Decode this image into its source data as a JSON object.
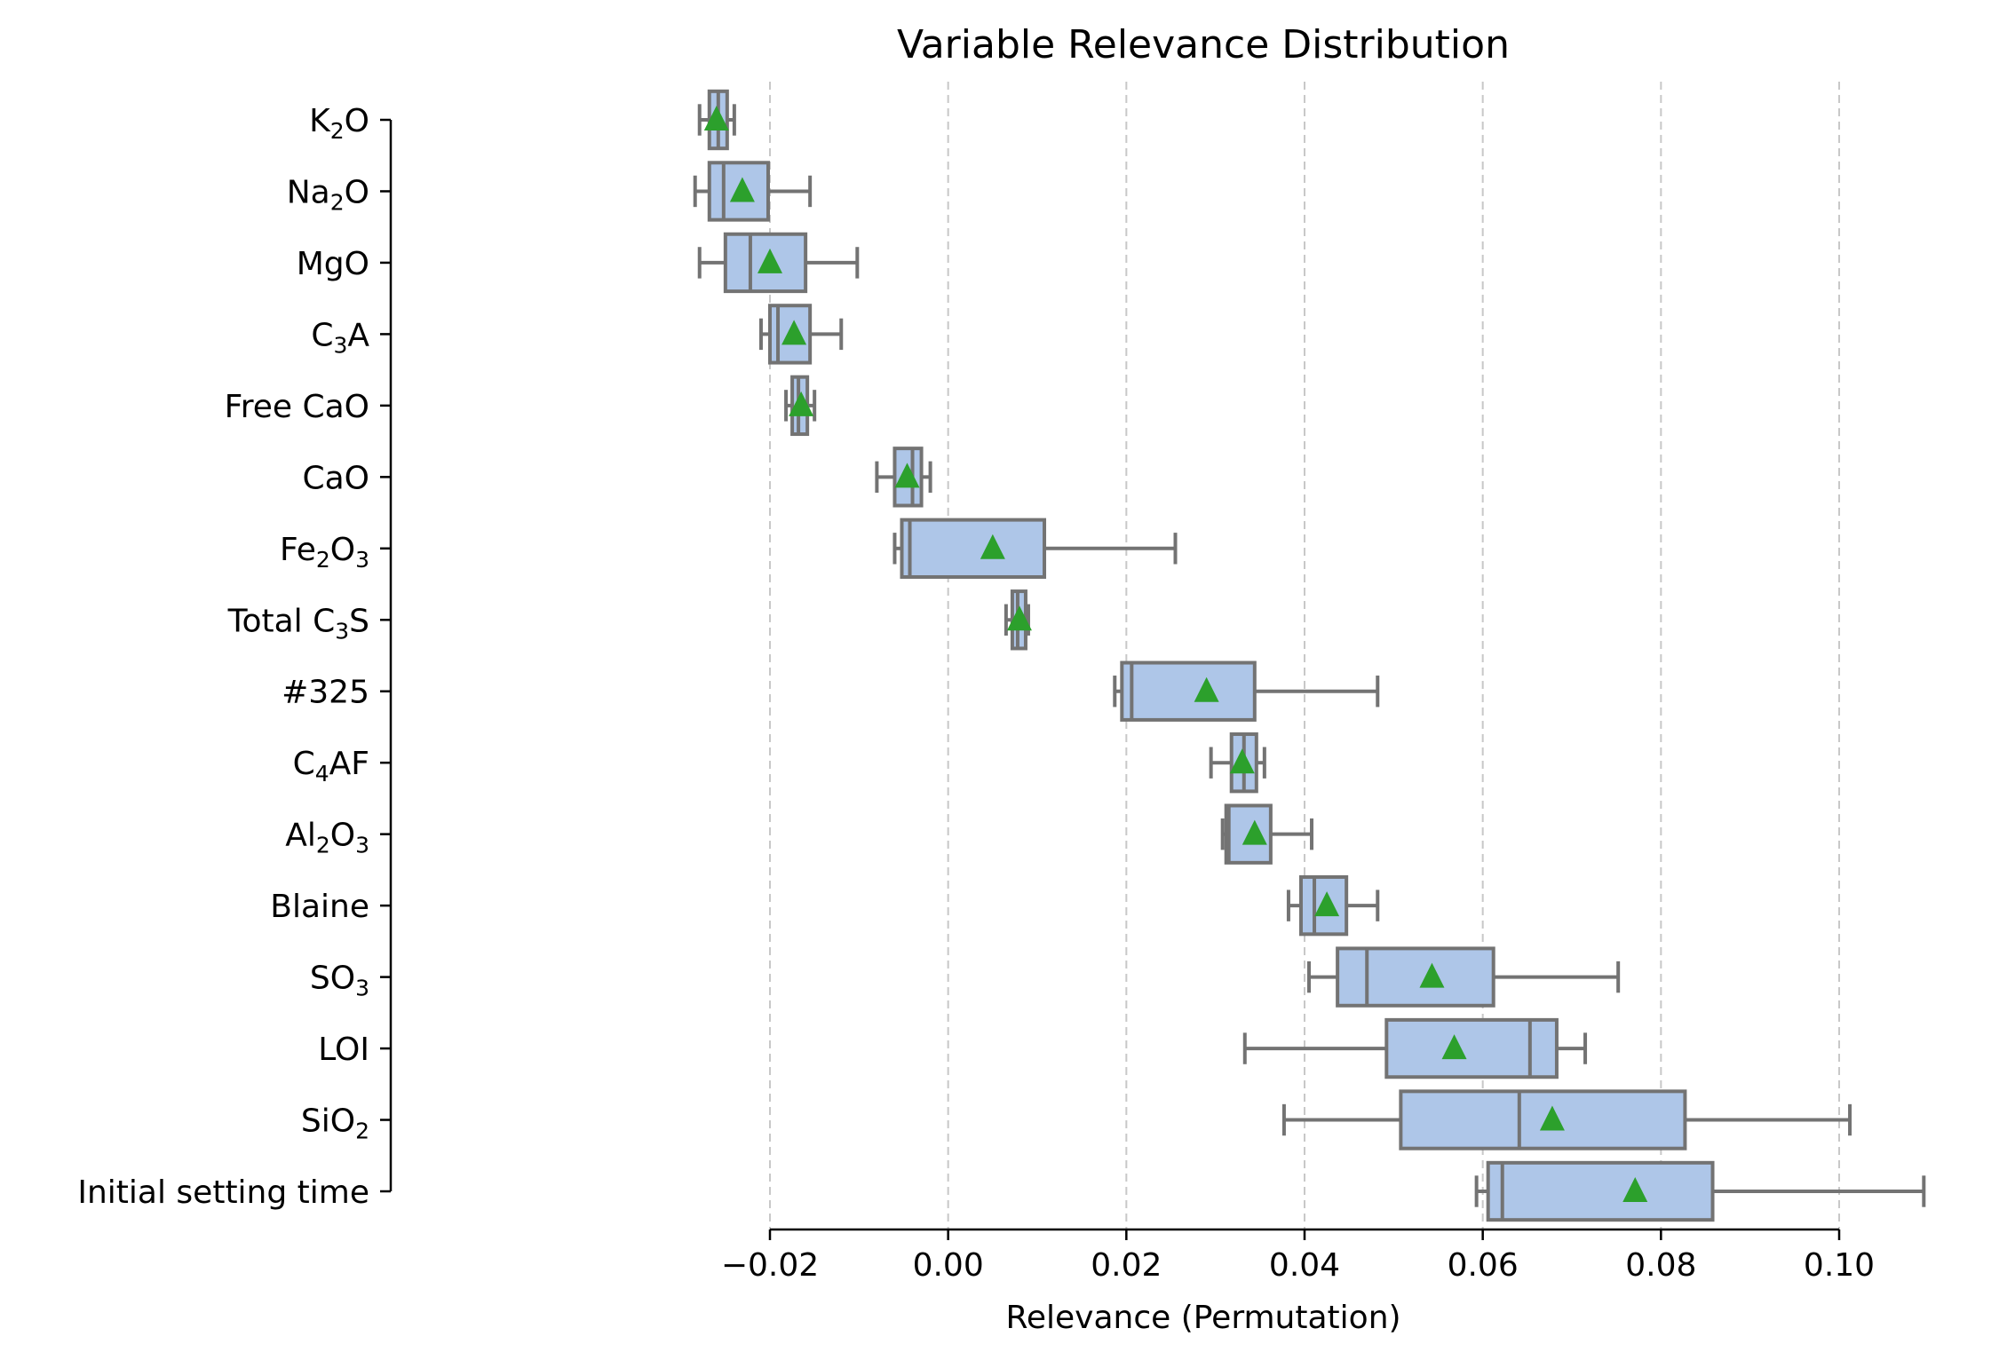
{
  "chart_data": {
    "type": "box",
    "title": "Variable Relevance Distribution",
    "xlabel": "Relevance (Permutation)",
    "ylabel": "",
    "xlim": [
      -0.0275,
      0.1118
    ],
    "xticks": [
      -0.02,
      0.0,
      0.02,
      0.04,
      0.06,
      0.08,
      0.1
    ],
    "xtick_labels": [
      "−0.02",
      "0.00",
      "0.02",
      "0.04",
      "0.06",
      "0.08",
      "0.10"
    ],
    "grid": "x-dashed",
    "colors": {
      "box_fill": "#aec6e8",
      "box_edge": "#737373",
      "mean_marker": "#2ca02c",
      "grid": "#c8c8c8"
    },
    "categories": [
      {
        "label": "K",
        "sub": "2",
        "tail": "O"
      },
      {
        "label": "Na",
        "sub": "2",
        "tail": "O"
      },
      {
        "label": "MgO"
      },
      {
        "label": "C",
        "sub": "3",
        "tail": "A"
      },
      {
        "label": "Free CaO"
      },
      {
        "label": "CaO"
      },
      {
        "label": "Fe",
        "sub": "2",
        "tail": "O",
        "sub2": "3"
      },
      {
        "label": "Total C",
        "sub": "3",
        "tail": "S"
      },
      {
        "label": "#325"
      },
      {
        "label": "C",
        "sub": "4",
        "tail": "AF"
      },
      {
        "label": "Al",
        "sub": "2",
        "tail": "O",
        "sub2": "3"
      },
      {
        "label": "Blaine"
      },
      {
        "label": "SO",
        "sub": "3"
      },
      {
        "label": "LOI"
      },
      {
        "label": "SiO",
        "sub": "2"
      },
      {
        "label": "Initial setting time"
      }
    ],
    "boxes": [
      {
        "whislo": -0.0279,
        "q1": -0.0268,
        "med": -0.0258,
        "q3": -0.0248,
        "whishi": -0.024,
        "mean": -0.026
      },
      {
        "whislo": -0.0284,
        "q1": -0.0268,
        "med": -0.0252,
        "q3": -0.0202,
        "whishi": -0.0155,
        "mean": -0.0231
      },
      {
        "whislo": -0.0279,
        "q1": -0.025,
        "med": -0.0222,
        "q3": -0.016,
        "whishi": -0.0102,
        "mean": -0.02
      },
      {
        "whislo": -0.021,
        "q1": -0.02,
        "med": -0.0191,
        "q3": -0.0155,
        "whishi": -0.012,
        "mean": -0.0173
      },
      {
        "whislo": -0.0182,
        "q1": -0.0175,
        "med": -0.0168,
        "q3": -0.0158,
        "whishi": -0.015,
        "mean": -0.0165
      },
      {
        "whislo": -0.008,
        "q1": -0.006,
        "med": -0.004,
        "q3": -0.003,
        "whishi": -0.002,
        "mean": -0.0046
      },
      {
        "whislo": -0.006,
        "q1": -0.0052,
        "med": -0.0043,
        "q3": 0.0108,
        "whishi": 0.0255,
        "mean": 0.005
      },
      {
        "whislo": 0.0065,
        "q1": 0.0072,
        "med": 0.0078,
        "q3": 0.0087,
        "whishi": 0.009,
        "mean": 0.008
      },
      {
        "whislo": 0.0187,
        "q1": 0.0195,
        "med": 0.0206,
        "q3": 0.0344,
        "whishi": 0.0482,
        "mean": 0.029
      },
      {
        "whislo": 0.0295,
        "q1": 0.0318,
        "med": 0.0332,
        "q3": 0.0346,
        "whishi": 0.0355,
        "mean": 0.033
      },
      {
        "whislo": 0.0308,
        "q1": 0.0312,
        "med": 0.0315,
        "q3": 0.0362,
        "whishi": 0.0408,
        "mean": 0.0344
      },
      {
        "whislo": 0.0382,
        "q1": 0.0396,
        "med": 0.0411,
        "q3": 0.0447,
        "whishi": 0.0482,
        "mean": 0.0425
      },
      {
        "whislo": 0.0405,
        "q1": 0.0437,
        "med": 0.047,
        "q3": 0.0612,
        "whishi": 0.0752,
        "mean": 0.0543
      },
      {
        "whislo": 0.0333,
        "q1": 0.0492,
        "med": 0.0653,
        "q3": 0.0683,
        "whishi": 0.0715,
        "mean": 0.0568
      },
      {
        "whislo": 0.0377,
        "q1": 0.0508,
        "med": 0.0641,
        "q3": 0.0827,
        "whishi": 0.1012,
        "mean": 0.0678
      },
      {
        "whislo": 0.0593,
        "q1": 0.0606,
        "med": 0.0622,
        "q3": 0.0858,
        "whishi": 0.1095,
        "mean": 0.0771
      }
    ]
  }
}
